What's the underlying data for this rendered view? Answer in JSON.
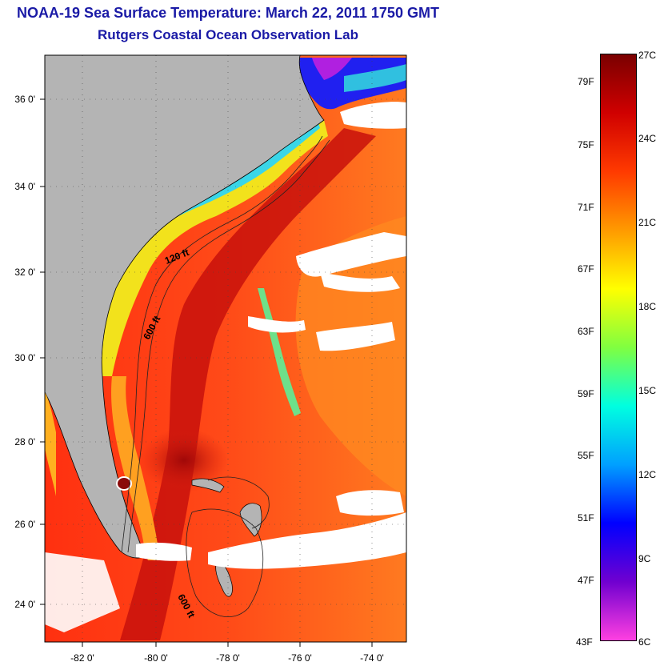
{
  "title": "NOAA-19 Sea Surface Temperature:  March 22, 2011 1750 GMT",
  "subtitle": "Rutgers Coastal Ocean Observation Lab",
  "map": {
    "lon_ticks": [
      "-82 0'",
      "-80 0'",
      "-78 0'",
      "-76 0'",
      "-74 0'"
    ],
    "lat_ticks": [
      "36 0'",
      "34 0'",
      "32 0'",
      "30 0'",
      "28 0'",
      "26 0'",
      "24 0'"
    ],
    "contour_labels": [
      "120 ft",
      "600 ft",
      "600 ft"
    ],
    "colors": {
      "land": "#b4b4b4",
      "clouds": "#ffffff",
      "warm_sea": "#e8281a",
      "gulf_stream": "#b80d0d",
      "shelf": "#f0e020",
      "cool": "#30d0e8"
    }
  },
  "colorbar": {
    "fahrenheit": [
      "79F",
      "75F",
      "71F",
      "67F",
      "63F",
      "59F",
      "55F",
      "51F",
      "47F",
      "43F"
    ],
    "celsius": [
      "27C",
      "24C",
      "21C",
      "18C",
      "15C",
      "12C",
      "9C",
      "6C"
    ],
    "gradient": [
      "#7a0000",
      "#d00000",
      "#ff3a00",
      "#ff9a00",
      "#ffff00",
      "#80ff40",
      "#00ffe0",
      "#00a0ff",
      "#0000ff",
      "#7000d0",
      "#ff40e0"
    ]
  }
}
